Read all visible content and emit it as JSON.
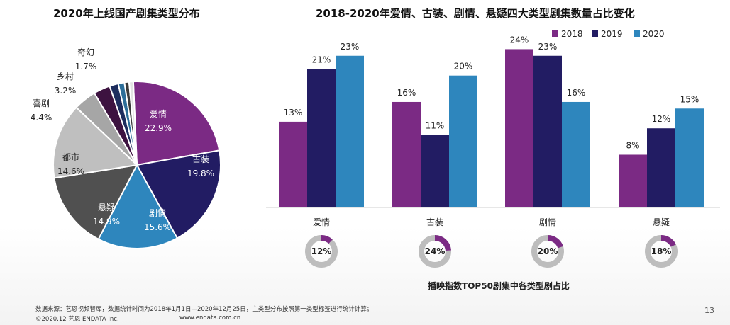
{
  "titles": {
    "pie": "2020年上线国产剧集类型分布",
    "bar": "2018-2020年爱情、古装、剧情、悬疑四大类型剧集数量占比变化",
    "donut_caption": "播映指数TOP50剧集中各类型剧占比"
  },
  "chart_data": [
    {
      "type": "pie",
      "title": "2020年上线国产剧集类型分布",
      "slices": [
        {
          "label": "爱情",
          "value": 22.9,
          "display": "22.9%",
          "color": "#7b2a84"
        },
        {
          "label": "古装",
          "value": 19.8,
          "display": "19.8%",
          "color": "#221c63"
        },
        {
          "label": "剧情",
          "value": 15.6,
          "display": "15.6%",
          "color": "#2e86bd"
        },
        {
          "label": "悬疑",
          "value": 14.9,
          "display": "14.9%",
          "color": "#505050"
        },
        {
          "label": "都市",
          "value": 14.6,
          "display": "14.6%",
          "color": "#bfbfbf"
        },
        {
          "label": "喜剧",
          "value": 4.4,
          "display": "4.4%",
          "color": "#a6a6a6"
        },
        {
          "label": "乡村",
          "value": 3.2,
          "display": "3.2%",
          "color": "#3d1340"
        },
        {
          "label": "奇幻",
          "value": 1.7,
          "display": "1.7%",
          "color": "#1d2d5e"
        },
        {
          "label": "",
          "value": 1.2,
          "display": "",
          "color": "#2c6e99"
        },
        {
          "label": "",
          "value": 0.9,
          "display": "",
          "color": "#3a3a3a"
        },
        {
          "label": "",
          "value": 0.8,
          "display": "",
          "color": "#e3e3e3"
        }
      ]
    },
    {
      "type": "bar",
      "title": "2018-2020年爱情、古装、剧情、悬疑四大类型剧集数量占比变化",
      "categories": [
        "爱情",
        "古装",
        "剧情",
        "悬疑"
      ],
      "series": [
        {
          "name": "2018",
          "color": "#7b2a84",
          "values": [
            13,
            16,
            24,
            8
          ]
        },
        {
          "name": "2019",
          "color": "#221c63",
          "values": [
            21,
            11,
            23,
            12
          ]
        },
        {
          "name": "2020",
          "color": "#2e86bd",
          "values": [
            23,
            20,
            16,
            15
          ]
        }
      ],
      "value_suffix": "%",
      "ylim": [
        0,
        25
      ],
      "grid": false,
      "legend": "top-right"
    },
    {
      "type": "pie",
      "subtype": "donut",
      "title": "播映指数TOP50剧集中各类型剧占比",
      "items": [
        {
          "label": "爱情",
          "value": 12,
          "display": "12%"
        },
        {
          "label": "古装",
          "value": 24,
          "display": "24%"
        },
        {
          "label": "剧情",
          "value": 20,
          "display": "20%"
        },
        {
          "label": "悬疑",
          "value": 18,
          "display": "18%"
        }
      ],
      "highlight_color": "#7b2a84",
      "track_color": "#bdbdbd"
    }
  ],
  "footer": {
    "source": "数据来源：艺恩视频智库，数据统计时间为2018年1月1日—2020年12月25日，主类型分布按照第一类型标签进行统计计算；",
    "copyright": "©2020.12 艺恩 ENDATA Inc.",
    "website": "www.endata.com.cn",
    "page_number": "13"
  }
}
